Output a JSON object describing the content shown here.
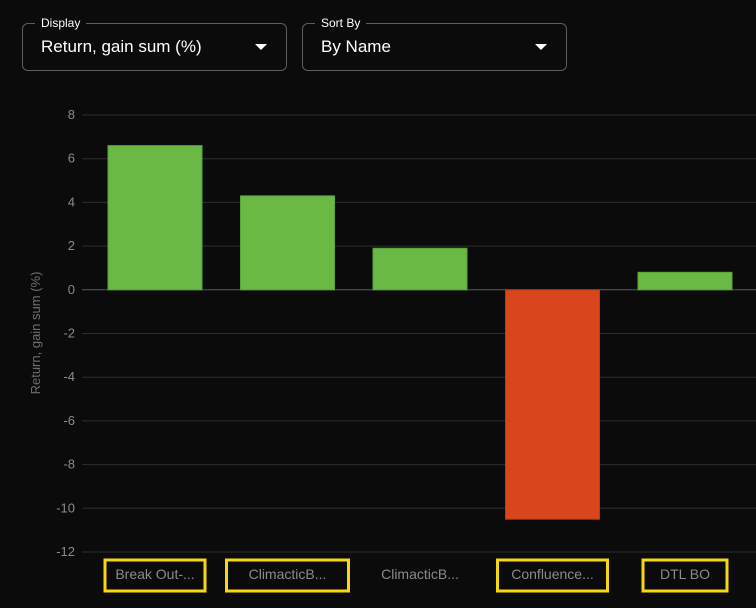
{
  "controls": {
    "display": {
      "label": "Display",
      "value": "Return, gain sum (%)"
    },
    "sort": {
      "label": "Sort By",
      "value": "By Name"
    }
  },
  "colors": {
    "positive": "#6ab944",
    "negative": "#d9461e",
    "gridline": "#2e2e2e",
    "tick_text": "#8a8a8a",
    "highlight": "#f5d80f"
  },
  "chart_data": {
    "type": "bar",
    "categories": [
      "Break Out-...",
      "ClimacticB...",
      "ClimacticB...",
      "Confluence...",
      "DTL BO"
    ],
    "values": [
      6.6,
      4.3,
      1.9,
      -10.5,
      0.8
    ],
    "title": "",
    "xlabel": "",
    "ylabel": "Return, gain sum (%)",
    "ylim": [
      -12,
      8
    ],
    "yticks": [
      8,
      6,
      4,
      2,
      0,
      -2,
      -4,
      -6,
      -8,
      -10,
      -12
    ],
    "grid": true,
    "legend": "none",
    "highlighted_categories": [
      0,
      1,
      3,
      4
    ]
  }
}
